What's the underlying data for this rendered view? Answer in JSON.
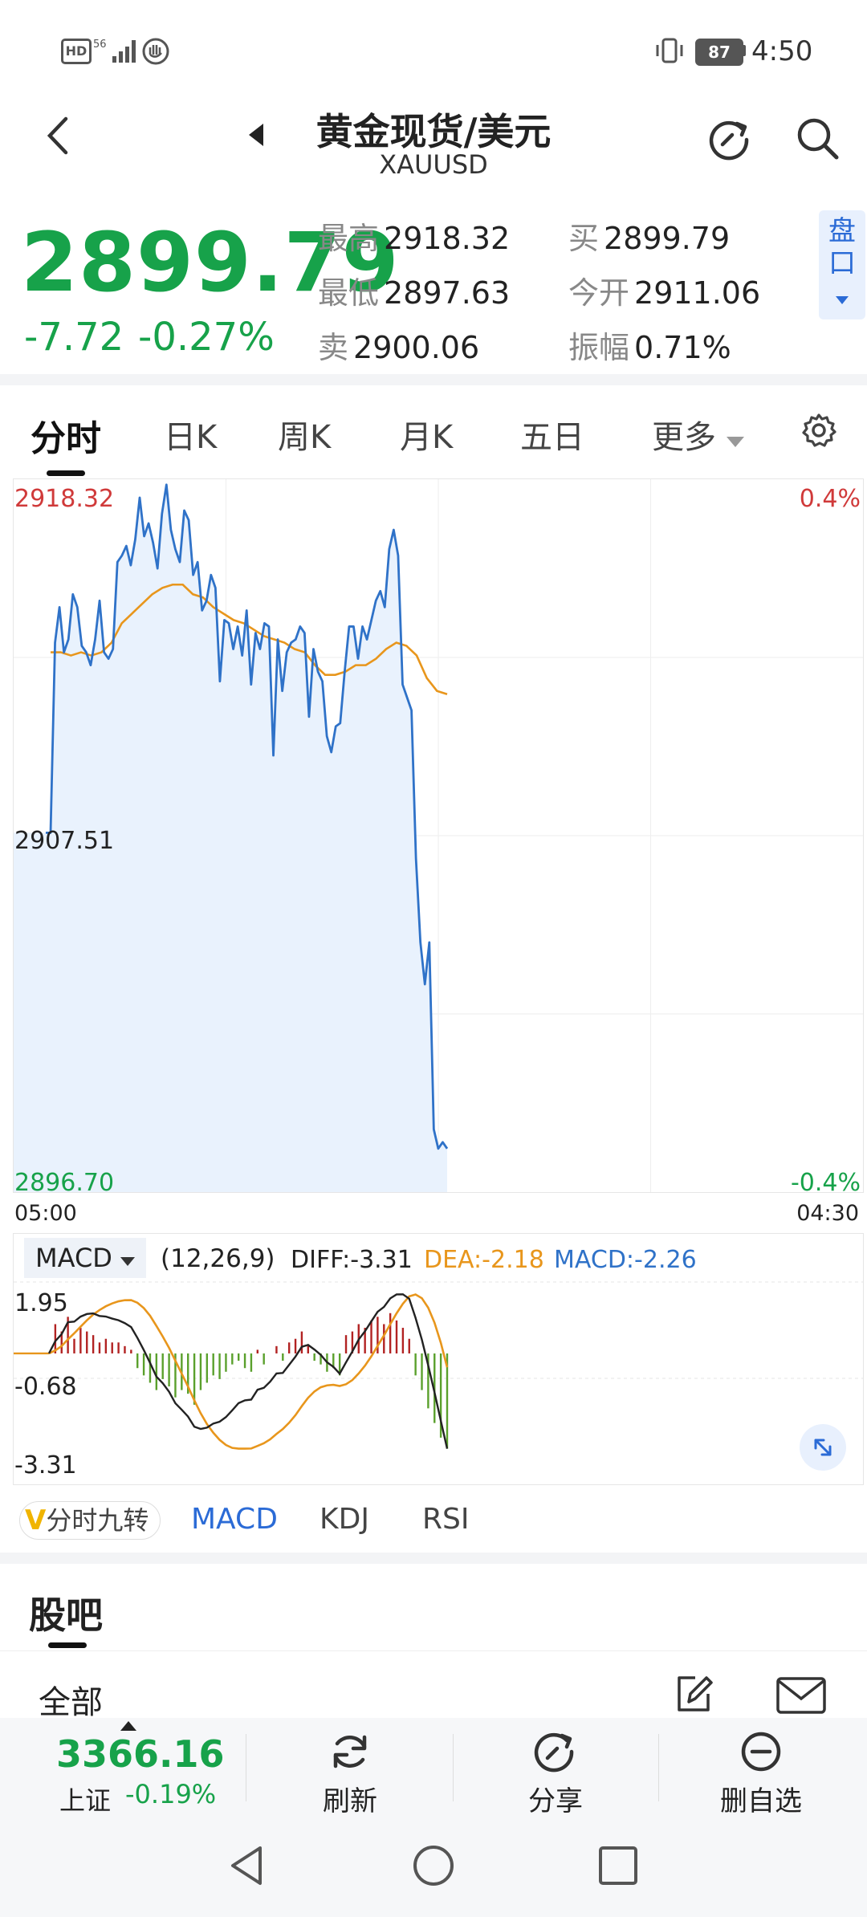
{
  "status_bar": {
    "left_icons": [
      "hd-icon",
      "5g-signal-icon",
      "hand-icon"
    ],
    "battery": "87",
    "time": "4:50"
  },
  "header": {
    "title": "黄金现货/美元",
    "symbol": "XAUUSD"
  },
  "quote": {
    "price": "2899.79",
    "change": "-7.72",
    "change_pct": "-0.27%",
    "high_label": "最高",
    "high": "2918.32",
    "low_label": "最低",
    "low": "2897.63",
    "sell_label": "卖",
    "sell": "2900.06",
    "buy_label": "买",
    "buy": "2899.79",
    "open_label": "今开",
    "open": "2911.06",
    "amp_label": "振幅",
    "amp": "0.71%",
    "pankou_label": "盘口"
  },
  "period_tabs": [
    "分时",
    "日K",
    "周K",
    "月K",
    "五日",
    "更多"
  ],
  "chart_data": {
    "type": "line",
    "x_start": "05:00",
    "x_end": "04:30",
    "y_top": "2918.32",
    "y_mid": "2907.51",
    "y_bottom": "2896.70",
    "pct_top": "0.4%",
    "pct_bottom": "-0.4%",
    "ylim": [
      2896.7,
      2918.32
    ],
    "series": [
      {
        "values": [
          2907.6,
          2913.5,
          2914.6,
          2913.2,
          2913.6,
          2915.0,
          2914.6,
          2913.4,
          2913.2,
          2912.8,
          2913.6,
          2914.8,
          2913.2,
          2913.0,
          2913.3,
          2916.0,
          2916.2,
          2916.5,
          2915.9,
          2916.7,
          2918.0,
          2916.8,
          2917.2,
          2916.6,
          2915.8,
          2917.5,
          2918.4,
          2917.0,
          2916.4,
          2916.0,
          2917.6,
          2917.3,
          2915.6,
          2916.0,
          2914.5,
          2914.8,
          2915.6,
          2915.2,
          2912.3,
          2914.2,
          2914.1,
          2913.3,
          2914.0,
          2913.1,
          2914.5,
          2912.2,
          2913.8,
          2913.3,
          2914.1,
          2914.0,
          2910.0,
          2913.6,
          2912.0,
          2913.2,
          2913.5,
          2913.6,
          2914.0,
          2913.8,
          2911.2,
          2913.3,
          2912.6,
          2912.3,
          2910.6,
          2910.1,
          2910.9,
          2911.0,
          2912.6,
          2914.0,
          2914.0,
          2913.0,
          2914.0,
          2913.6,
          2914.2,
          2914.8,
          2915.1,
          2914.6,
          2916.4,
          2917.0,
          2916.2,
          2912.2,
          2911.8,
          2911.4,
          2906.8,
          2904.2,
          2902.9,
          2904.2,
          2898.4,
          2897.8,
          2898.0,
          2897.8
        ],
        "color": "#2f72c8"
      },
      {
        "values": [
          2913.2,
          2913.2,
          2913.1,
          2913.2,
          2913.1,
          2913.2,
          2913.5,
          2914.1,
          2914.4,
          2914.7,
          2915.0,
          2915.2,
          2915.3,
          2915.3,
          2915.0,
          2914.9,
          2914.6,
          2914.4,
          2914.2,
          2914.1,
          2913.9,
          2913.7,
          2913.6,
          2913.5,
          2913.3,
          2913.2,
          2912.8,
          2912.5,
          2912.5,
          2912.6,
          2912.8,
          2912.8,
          2913.0,
          2913.3,
          2913.5,
          2913.4,
          2913.1,
          2912.4,
          2912.0,
          2911.9
        ],
        "color": "#e8961c"
      }
    ]
  },
  "macd": {
    "name": "MACD",
    "params": "(12,26,9)",
    "diff": "DIFF:-3.31",
    "dea": "DEA:-2.18",
    "macd": "MACD:-2.26",
    "y_top": "1.95",
    "y_mid": "-0.68",
    "y_bottom": "-3.31",
    "hist_color_up": "#b22222",
    "hist_color_down": "#5aa02c",
    "bars": [
      0.0,
      0.8,
      0.6,
      1.0,
      0.4,
      0.7,
      0.6,
      0.5,
      0.3,
      0.4,
      0.3,
      0.3,
      0.2,
      0.1,
      -0.4,
      -0.6,
      -0.8,
      -1.0,
      -0.7,
      -0.9,
      -1.2,
      -1.0,
      -1.1,
      -1.4,
      -1.0,
      -0.8,
      -0.6,
      -0.7,
      -0.5,
      -0.3,
      -0.2,
      -0.4,
      -0.5,
      0.1,
      -0.3,
      0.0,
      0.2,
      -0.2,
      0.3,
      0.4,
      0.6,
      0.2,
      -0.2,
      -0.3,
      -0.5,
      -0.4,
      -0.6,
      0.5,
      0.6,
      0.8,
      0.7,
      0.9,
      1.0,
      0.8,
      1.1,
      0.9,
      0.7,
      0.4,
      -0.6,
      -1.0,
      -1.5,
      -1.9,
      -2.3,
      -2.6
    ]
  },
  "indicator_tabs": {
    "nine_turn": "分时九转",
    "items": [
      "MACD",
      "KDJ",
      "RSI"
    ]
  },
  "guba": {
    "title": "股吧",
    "filter": "全部"
  },
  "bottom_bar": {
    "index_value": "3366.16",
    "index_name": "上证",
    "index_pct": "-0.19%",
    "refresh": "刷新",
    "share": "分享",
    "remove": "删自选"
  }
}
